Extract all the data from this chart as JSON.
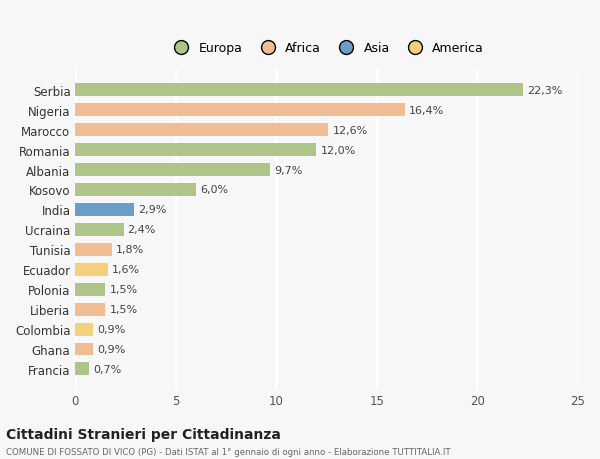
{
  "categories": [
    "Serbia",
    "Nigeria",
    "Marocco",
    "Romania",
    "Albania",
    "Kosovo",
    "India",
    "Ucraina",
    "Tunisia",
    "Ecuador",
    "Polonia",
    "Liberia",
    "Colombia",
    "Ghana",
    "Francia"
  ],
  "values": [
    22.3,
    16.4,
    12.6,
    12.0,
    9.7,
    6.0,
    2.9,
    2.4,
    1.8,
    1.6,
    1.5,
    1.5,
    0.9,
    0.9,
    0.7
  ],
  "labels": [
    "22,3%",
    "16,4%",
    "12,6%",
    "12,0%",
    "9,7%",
    "6,0%",
    "2,9%",
    "2,4%",
    "1,8%",
    "1,6%",
    "1,5%",
    "1,5%",
    "0,9%",
    "0,9%",
    "0,7%"
  ],
  "colors": [
    "#aec488",
    "#f0bc94",
    "#f0bc94",
    "#aec488",
    "#aec488",
    "#aec488",
    "#6b9ec7",
    "#aec488",
    "#f0bc94",
    "#f5d07a",
    "#aec488",
    "#f0bc94",
    "#f5d07a",
    "#f0bc94",
    "#aec488"
  ],
  "legend_labels": [
    "Europa",
    "Africa",
    "Asia",
    "America"
  ],
  "legend_colors": [
    "#aec488",
    "#f0bc94",
    "#6b9ec7",
    "#f5d07a"
  ],
  "title": "Cittadini Stranieri per Cittadinanza",
  "subtitle": "COMUNE DI FOSSATO DI VICO (PG) - Dati ISTAT al 1° gennaio di ogni anno - Elaborazione TUTTITALIA.IT",
  "xlim": [
    0,
    25
  ],
  "xticks": [
    0,
    5,
    10,
    15,
    20,
    25
  ],
  "bg_color": "#f7f7f7",
  "grid_color": "#ffffff"
}
